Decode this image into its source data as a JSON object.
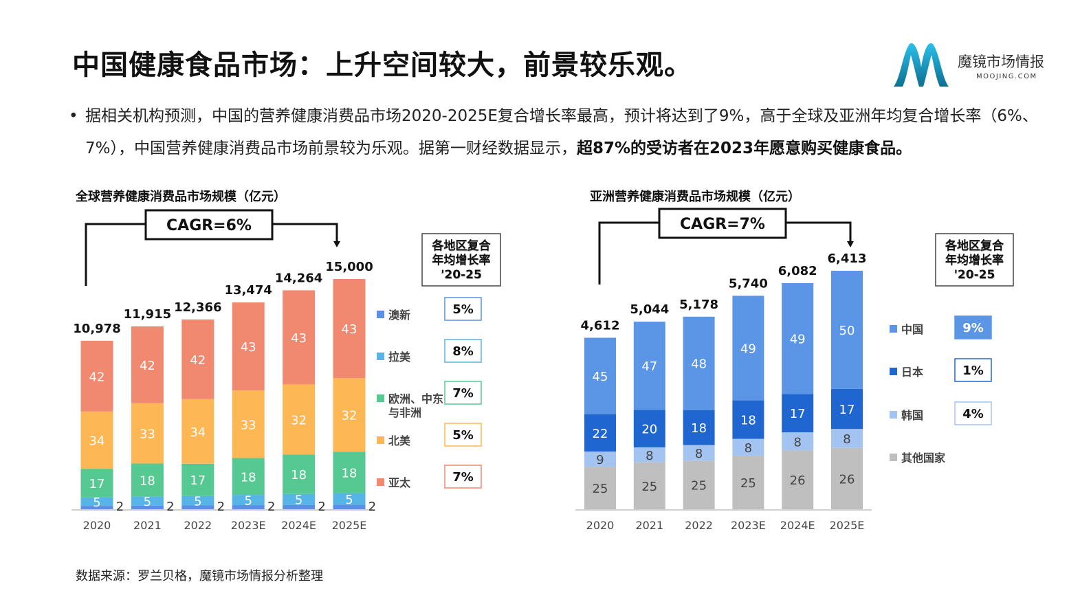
{
  "title": "中国健康食品市场：上升空间较大，前景较乐观。",
  "logo": {
    "name_cn": "魔镜市场情报",
    "name_en": "MOOJING.COM",
    "colors": [
      "#1CA8D8",
      "#0E6F92"
    ]
  },
  "bullet": {
    "normal": "据相关机构预测，中国的营养健康消费品市场2020-2025E复合增长率最高，预计将达到了9%，高于全球及亚洲年均复合增长率（6%、7%），中国营养健康消费品市场前景较为乐观。据第一财经数据显示，",
    "bold": "超87%的受访者在2023年愿意购买健康食品。"
  },
  "source": "数据来源：罗兰贝格，魔镜市场情报分析整理",
  "chart_data": [
    {
      "type": "bar",
      "stacked": true,
      "title": "全球营养健康消费品市场规模（亿元）",
      "cagr_label": "CAGR=6%",
      "categories": [
        "2020",
        "2021",
        "2022",
        "2023E",
        "2024E",
        "2025E"
      ],
      "totals": [
        10978,
        11915,
        12366,
        13474,
        14264,
        15000
      ],
      "total_labels": [
        "10,978",
        "11,915",
        "12,366",
        "13,474",
        "14,264",
        "15,000"
      ],
      "legend_title": "各地区复合年均增长率 '20-25",
      "legend_title_lines": [
        "各地区复合",
        "年均增长率",
        "‘20-25"
      ],
      "series": [
        {
          "name": "澳新",
          "color": "#5B8FE3",
          "shares": [
            2,
            2,
            2,
            2,
            2,
            2
          ],
          "cagr": "5%"
        },
        {
          "name": "拉美",
          "color": "#56B4E6",
          "shares": [
            5,
            5,
            5,
            5,
            5,
            5
          ],
          "cagr": "8%"
        },
        {
          "name": "欧洲、中东与非洲",
          "name_lines": [
            "欧洲、中东",
            "与非洲"
          ],
          "color": "#55C991",
          "shares": [
            17,
            18,
            17,
            18,
            18,
            18
          ],
          "cagr": "7%"
        },
        {
          "name": "北美",
          "color": "#FDB755",
          "shares": [
            34,
            33,
            34,
            33,
            32,
            32
          ],
          "cagr": "5%"
        },
        {
          "name": "亚太",
          "color": "#F0896F",
          "shares": [
            42,
            42,
            42,
            43,
            43,
            43
          ],
          "cagr": "7%"
        }
      ]
    },
    {
      "type": "bar",
      "stacked": true,
      "title": "亚洲营养健康消费品市场规模（亿元）",
      "cagr_label": "CAGR=7%",
      "categories": [
        "2020",
        "2021",
        "2022",
        "2023E",
        "2024E",
        "2025E"
      ],
      "totals": [
        4612,
        5044,
        5178,
        5740,
        6082,
        6413
      ],
      "total_labels": [
        "4,612",
        "5,044",
        "5,178",
        "5,740",
        "6,082",
        "6,413"
      ],
      "legend_title": "各地区复合年均增长率 '20-25",
      "legend_title_lines": [
        "各地区复合",
        "年均增长率",
        "‘20-25"
      ],
      "series": [
        {
          "name": "其他国家",
          "color": "#BFBFBF",
          "shares": [
            25,
            25,
            25,
            25,
            26,
            26
          ],
          "cagr": ""
        },
        {
          "name": "韩国",
          "color": "#A3C3F0",
          "shares": [
            9,
            8,
            8,
            8,
            8,
            8
          ],
          "cagr": "4%"
        },
        {
          "name": "日本",
          "color": "#2066D1",
          "shares": [
            22,
            20,
            18,
            18,
            17,
            17
          ],
          "cagr": "1%"
        },
        {
          "name": "中国",
          "color": "#5B95E5",
          "shares": [
            45,
            47,
            48,
            49,
            49,
            50
          ],
          "cagr": "9%",
          "highlight": true
        }
      ]
    }
  ]
}
